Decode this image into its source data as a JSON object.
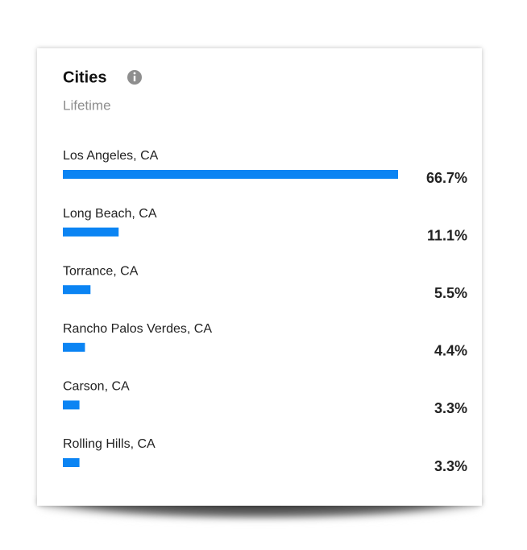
{
  "chart_data": {
    "type": "bar",
    "orientation": "horizontal",
    "title": "Cities",
    "subtitle": "Lifetime",
    "categories": [
      "Los Angeles, CA",
      "Long Beach, CA",
      "Torrance, CA",
      "Rancho Palos Verdes, CA",
      "Carson, CA",
      "Rolling Hills, CA"
    ],
    "values": [
      66.7,
      11.1,
      5.5,
      4.4,
      3.3,
      3.3
    ],
    "value_labels": [
      "66.7%",
      "11.1%",
      "5.5%",
      "4.4%",
      "3.3%",
      "3.3%"
    ],
    "color": "#0b84f3"
  }
}
